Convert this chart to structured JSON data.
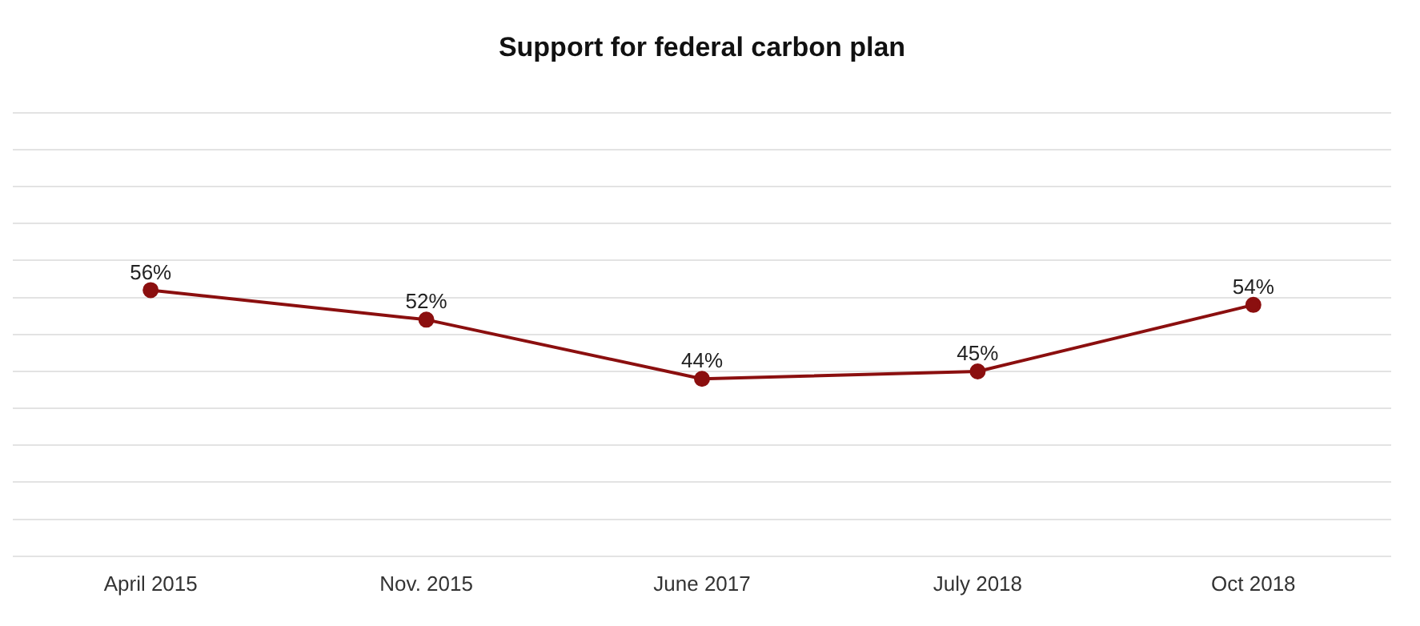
{
  "chart_data": {
    "type": "line",
    "title": "Support for federal carbon plan",
    "categories": [
      "April 2015",
      "Nov. 2015",
      "June 2017",
      "July 2018",
      "Oct 2018"
    ],
    "series": [
      {
        "color": "#8b0f0f",
        "values": [
          56,
          52,
          44,
          45,
          54
        ],
        "value_labels": [
          "56%",
          "52%",
          "44%",
          "45%",
          "54%"
        ]
      }
    ],
    "ylim": [
      20,
      80
    ],
    "yticks": [
      {
        "value": 20,
        "label": null
      },
      {
        "value": 25,
        "label": null
      },
      {
        "value": 30,
        "label": null
      },
      {
        "value": 35,
        "label": null
      },
      {
        "value": 40,
        "label": null
      },
      {
        "value": 45,
        "label": null
      },
      {
        "value": 50,
        "label": null
      },
      {
        "value": 55,
        "label": null
      },
      {
        "value": 60,
        "label": null
      },
      {
        "value": 65,
        "label": null
      },
      {
        "value": 70,
        "label": null
      },
      {
        "value": 75,
        "label": null
      },
      {
        "value": 80,
        "label": null
      }
    ],
    "grid": "y",
    "legend": false,
    "tick_labels": "x",
    "marker": "circle",
    "line_style": "solid"
  }
}
